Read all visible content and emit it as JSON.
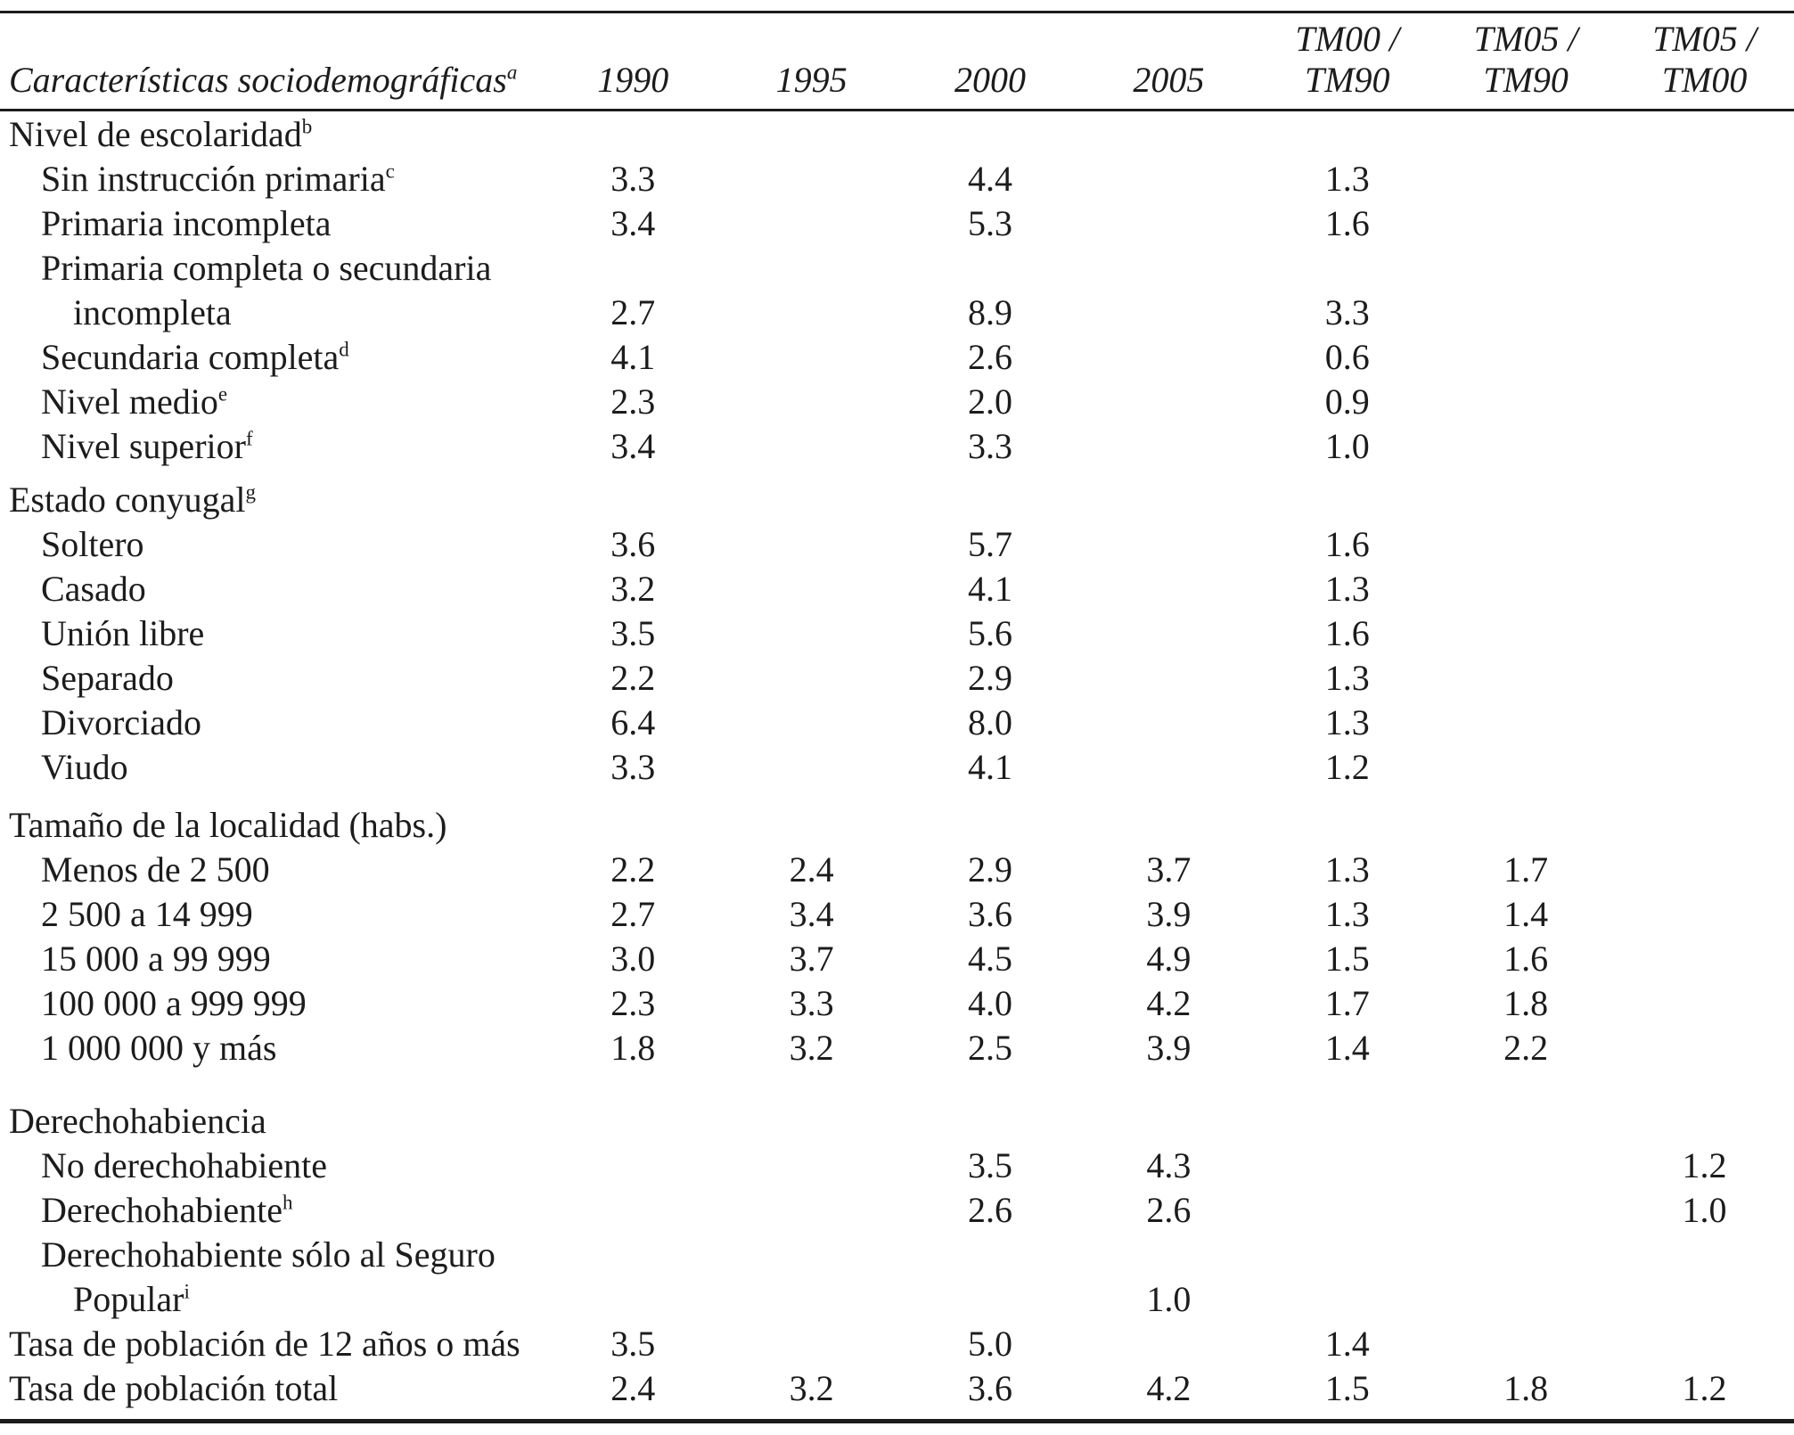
{
  "table": {
    "header": {
      "label": "Características sociodemográficas",
      "label_sup": "a",
      "columns": [
        {
          "line1": "",
          "line2": "1990"
        },
        {
          "line1": "",
          "line2": "1995"
        },
        {
          "line1": "",
          "line2": "2000"
        },
        {
          "line1": "",
          "line2": "2005"
        },
        {
          "line1": "TM00 /",
          "line2": "TM90"
        },
        {
          "line1": "TM05 /",
          "line2": "TM90"
        },
        {
          "line1": "TM05 /",
          "line2": "TM00"
        }
      ]
    },
    "rows": [
      {
        "label": "Nivel de escolaridad",
        "sup": "b",
        "values": [
          "",
          "",
          "",
          "",
          "",
          "",
          ""
        ]
      },
      {
        "label": "Sin instrucción primaria",
        "sup": "c",
        "values": [
          "3.3",
          "",
          "4.4",
          "",
          "1.3",
          "",
          ""
        ]
      },
      {
        "label": "Primaria incompleta",
        "sup": "",
        "values": [
          "3.4",
          "",
          "5.3",
          "",
          "1.6",
          "",
          ""
        ]
      },
      {
        "label": "Primaria completa o secundaria",
        "sup": "",
        "values": [
          "",
          "",
          "",
          "",
          "",
          "",
          ""
        ]
      },
      {
        "label": "incompleta",
        "sup": "",
        "values": [
          "2.7",
          "",
          "8.9",
          "",
          "3.3",
          "",
          ""
        ]
      },
      {
        "label": "Secundaria completa",
        "sup": "d",
        "values": [
          "4.1",
          "",
          "2.6",
          "",
          "0.6",
          "",
          ""
        ]
      },
      {
        "label": "Nivel medio",
        "sup": "e",
        "values": [
          "2.3",
          "",
          "2.0",
          "",
          "0.9",
          "",
          ""
        ]
      },
      {
        "label": "Nivel superior",
        "sup": "f",
        "values": [
          "3.4",
          "",
          "3.3",
          "",
          "1.0",
          "",
          ""
        ]
      },
      {
        "label": "Estado conyugal",
        "sup": "g",
        "values": [
          "",
          "",
          "",
          "",
          "",
          "",
          ""
        ]
      },
      {
        "label": "Soltero",
        "sup": "",
        "values": [
          "3.6",
          "",
          "5.7",
          "",
          "1.6",
          "",
          ""
        ]
      },
      {
        "label": "Casado",
        "sup": "",
        "values": [
          "3.2",
          "",
          "4.1",
          "",
          "1.3",
          "",
          ""
        ]
      },
      {
        "label": "Unión libre",
        "sup": "",
        "values": [
          "3.5",
          "",
          "5.6",
          "",
          "1.6",
          "",
          ""
        ]
      },
      {
        "label": "Separado",
        "sup": "",
        "values": [
          "2.2",
          "",
          "2.9",
          "",
          "1.3",
          "",
          ""
        ]
      },
      {
        "label": "Divorciado",
        "sup": "",
        "values": [
          "6.4",
          "",
          "8.0",
          "",
          "1.3",
          "",
          ""
        ]
      },
      {
        "label": "Viudo",
        "sup": "",
        "values": [
          "3.3",
          "",
          "4.1",
          "",
          "1.2",
          "",
          ""
        ]
      },
      {
        "label": "Tamaño de la localidad (habs.)",
        "sup": "",
        "values": [
          "",
          "",
          "",
          "",
          "",
          "",
          ""
        ]
      },
      {
        "label": "Menos de 2 500",
        "sup": "",
        "values": [
          "2.2",
          "2.4",
          "2.9",
          "3.7",
          "1.3",
          "1.7",
          ""
        ]
      },
      {
        "label": "2 500 a 14 999",
        "sup": "",
        "values": [
          "2.7",
          "3.4",
          "3.6",
          "3.9",
          "1.3",
          "1.4",
          ""
        ]
      },
      {
        "label": "15 000 a 99 999",
        "sup": "",
        "values": [
          "3.0",
          "3.7",
          "4.5",
          "4.9",
          "1.5",
          "1.6",
          ""
        ]
      },
      {
        "label": "100 000 a 999 999",
        "sup": "",
        "values": [
          "2.3",
          "3.3",
          "4.0",
          "4.2",
          "1.7",
          "1.8",
          ""
        ]
      },
      {
        "label": "1 000 000 y más",
        "sup": "",
        "values": [
          "1.8",
          "3.2",
          "2.5",
          "3.9",
          "1.4",
          "2.2",
          ""
        ]
      },
      {
        "label": "Derechohabiencia",
        "sup": "",
        "values": [
          "",
          "",
          "",
          "",
          "",
          "",
          ""
        ]
      },
      {
        "label": "No derechohabiente",
        "sup": "",
        "values": [
          "",
          "",
          "3.5",
          "4.3",
          "",
          "",
          "1.2"
        ]
      },
      {
        "label": "Derechohabiente",
        "sup": "h",
        "values": [
          "",
          "",
          "2.6",
          "2.6",
          "",
          "",
          "1.0"
        ]
      },
      {
        "label": "Derechohabiente sólo al Seguro",
        "sup": "",
        "values": [
          "",
          "",
          "",
          "",
          "",
          "",
          ""
        ]
      },
      {
        "label": "Popular",
        "sup": "i",
        "values": [
          "",
          "",
          "",
          "1.0",
          "",
          "",
          ""
        ]
      },
      {
        "label": "Tasa de población de 12 años o más",
        "sup": "",
        "values": [
          "3.5",
          "",
          "5.0",
          "",
          "1.4",
          "",
          ""
        ]
      },
      {
        "label": "Tasa de población total",
        "sup": "",
        "values": [
          "2.4",
          "3.2",
          "3.6",
          "4.2",
          "1.5",
          "1.8",
          "1.2"
        ]
      }
    ]
  }
}
